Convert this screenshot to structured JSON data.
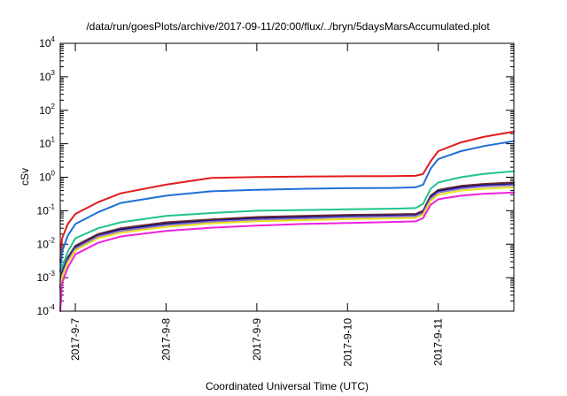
{
  "chart_data": {
    "type": "line",
    "title": "/data/run/goesPlots/archive/2017-09-11/20:00/flux/../bryn/5daysMarsAccumulated.plot",
    "xlabel": "Coordinated Universal Time (UTC)",
    "ylabel": "cSv",
    "y_scale": "log",
    "ylim": [
      0.0001,
      10000
    ],
    "y_ticks": [
      {
        "value": 0.0001,
        "base": "10",
        "exp": "-4"
      },
      {
        "value": 0.001,
        "base": "10",
        "exp": "-3"
      },
      {
        "value": 0.01,
        "base": "10",
        "exp": "-2"
      },
      {
        "value": 0.1,
        "base": "10",
        "exp": "-1"
      },
      {
        "value": 1,
        "base": "10",
        "exp": "0"
      },
      {
        "value": 10,
        "base": "10",
        "exp": "1"
      },
      {
        "value": 100,
        "base": "10",
        "exp": "2"
      },
      {
        "value": 1000,
        "base": "10",
        "exp": "3"
      },
      {
        "value": 10000,
        "base": "10",
        "exp": "4"
      }
    ],
    "xlim": [
      "2017-09-06 20:00",
      "2017-09-11 20:00"
    ],
    "x_ticks": [
      {
        "value": "2017-09-07 00:00",
        "label": "2017-9-7"
      },
      {
        "value": "2017-09-08 00:00",
        "label": "2017-9-8"
      },
      {
        "value": "2017-09-09 00:00",
        "label": "2017-9-9"
      },
      {
        "value": "2017-09-10 00:00",
        "label": "2017-9-10"
      },
      {
        "value": "2017-09-11 00:00",
        "label": "2017-9-11"
      }
    ],
    "grid": false,
    "legend": "none",
    "x": [
      "2017-09-06 20:00",
      "2017-09-06 20:30",
      "2017-09-06 22:00",
      "2017-09-07 00:00",
      "2017-09-07 06:00",
      "2017-09-07 12:00",
      "2017-09-08 00:00",
      "2017-09-08 12:00",
      "2017-09-09 00:00",
      "2017-09-09 12:00",
      "2017-09-10 00:00",
      "2017-09-10 12:00",
      "2017-09-10 18:00",
      "2017-09-10 20:00",
      "2017-09-10 22:00",
      "2017-09-11 00:00",
      "2017-09-11 06:00",
      "2017-09-11 12:00",
      "2017-09-11 20:00"
    ],
    "series": [
      {
        "color": "#e41a1c",
        "values": [
          0.003,
          0.015,
          0.04,
          0.08,
          0.18,
          0.33,
          0.6,
          0.95,
          1.02,
          1.05,
          1.07,
          1.08,
          1.1,
          1.25,
          3.0,
          6.0,
          11.0,
          16.0,
          23.0
        ]
      },
      {
        "color": "#1f6fd6",
        "values": [
          0.0015,
          0.006,
          0.018,
          0.04,
          0.09,
          0.17,
          0.28,
          0.38,
          0.42,
          0.45,
          0.47,
          0.48,
          0.5,
          0.6,
          1.8,
          3.5,
          6.0,
          8.5,
          12.0
        ]
      },
      {
        "color": "#1fc48c",
        "values": [
          0.0008,
          0.002,
          0.006,
          0.015,
          0.03,
          0.045,
          0.07,
          0.085,
          0.1,
          0.105,
          0.11,
          0.115,
          0.12,
          0.16,
          0.45,
          0.7,
          1.0,
          1.25,
          1.5
        ]
      },
      {
        "color": "#6b2a2a",
        "values": [
          0.0006,
          0.0015,
          0.004,
          0.009,
          0.02,
          0.03,
          0.045,
          0.055,
          0.065,
          0.07,
          0.075,
          0.078,
          0.08,
          0.1,
          0.28,
          0.42,
          0.55,
          0.63,
          0.7
        ]
      },
      {
        "color": "#0b0b8a",
        "values": [
          0.0005,
          0.0013,
          0.0035,
          0.008,
          0.018,
          0.027,
          0.04,
          0.05,
          0.058,
          0.063,
          0.068,
          0.071,
          0.073,
          0.09,
          0.25,
          0.38,
          0.5,
          0.57,
          0.62
        ]
      },
      {
        "color": "#8a6fc7",
        "values": [
          0.00045,
          0.0012,
          0.0032,
          0.0075,
          0.017,
          0.025,
          0.037,
          0.047,
          0.054,
          0.059,
          0.064,
          0.067,
          0.069,
          0.085,
          0.23,
          0.35,
          0.46,
          0.53,
          0.58
        ]
      },
      {
        "color": "#e8e020",
        "values": [
          0.0004,
          0.001,
          0.0028,
          0.0065,
          0.015,
          0.022,
          0.033,
          0.042,
          0.048,
          0.052,
          0.056,
          0.059,
          0.061,
          0.075,
          0.2,
          0.3,
          0.4,
          0.45,
          0.5
        ]
      },
      {
        "color": "#ee22dd",
        "values": [
          0.0001,
          0.0007,
          0.002,
          0.005,
          0.011,
          0.017,
          0.025,
          0.031,
          0.036,
          0.04,
          0.043,
          0.046,
          0.048,
          0.06,
          0.15,
          0.22,
          0.28,
          0.32,
          0.35
        ]
      }
    ]
  }
}
